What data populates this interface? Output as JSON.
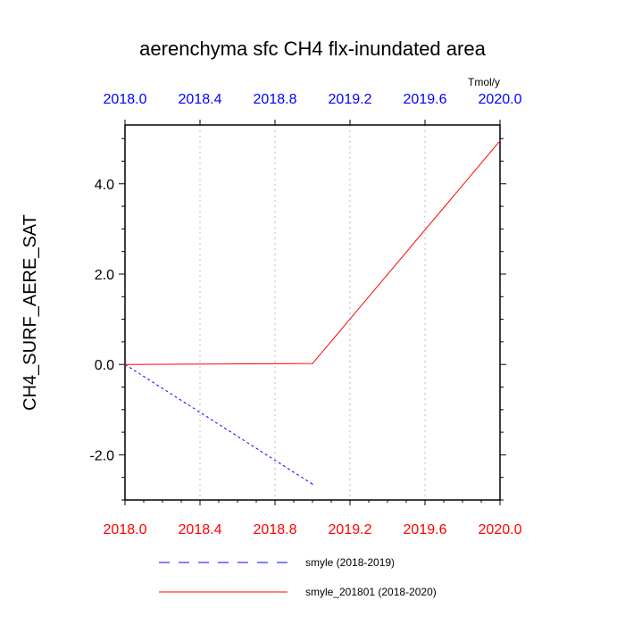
{
  "chart_data": {
    "type": "line",
    "title": "aerenchyma sfc CH4 flx-inundated area",
    "units": "Tmol/y",
    "ylabel": "CH4_SURF_AERE_SAT",
    "xlabel": "",
    "xlim": [
      2018.0,
      2020.0
    ],
    "ylim": [
      -3.0,
      5.3
    ],
    "x_ticks": [
      "2018.0",
      "2018.4",
      "2018.8",
      "2019.2",
      "2019.6",
      "2020.0"
    ],
    "x_tick_values": [
      2018.0,
      2018.4,
      2018.8,
      2019.2,
      2019.6,
      2020.0
    ],
    "y_ticks": [
      "-2.0",
      "0.0",
      "2.0",
      "4.0"
    ],
    "y_tick_values": [
      -2.0,
      0.0,
      2.0,
      4.0
    ],
    "x_grid": true,
    "top_axis_color": "#0000ff",
    "bottom_axis_color": "#ff0000",
    "series": [
      {
        "name": "smyle (2018-2019)",
        "x": [
          2018.0,
          2019.0
        ],
        "y": [
          0.0,
          -2.65
        ],
        "color": "#0000ff",
        "dash": "dashed"
      },
      {
        "name": "smyle_201801 (2018-2020)",
        "x": [
          2018.0,
          2019.0,
          2020.0
        ],
        "y": [
          0.0,
          0.02,
          4.95
        ],
        "color": "#ff0000",
        "dash": "solid"
      }
    ],
    "legend_position": "bottom"
  }
}
